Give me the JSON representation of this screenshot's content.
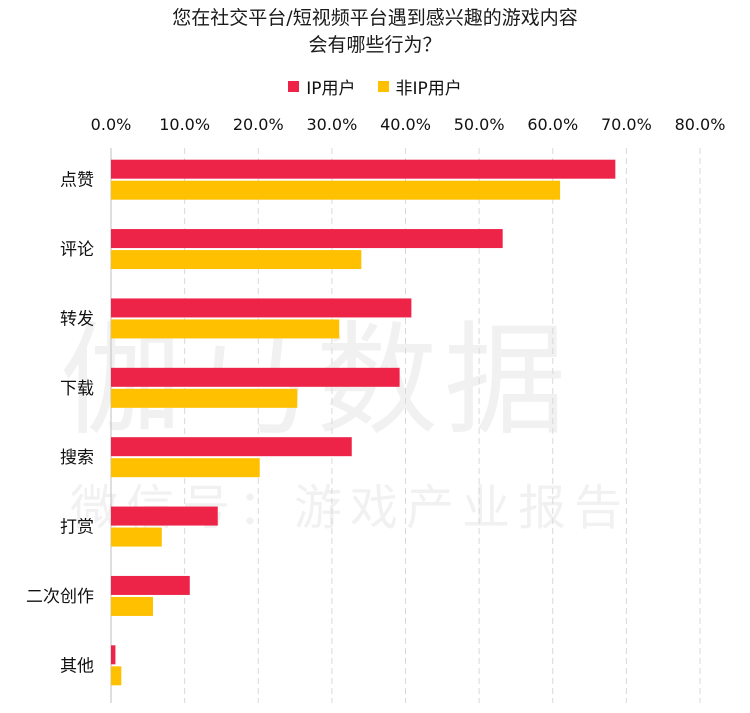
{
  "chart_data": {
    "type": "bar",
    "orientation": "horizontal",
    "title_lines": [
      "您在社交平台/短视频平台遇到感兴趣的游戏内容",
      "会有哪些行为？"
    ],
    "categories": [
      "点赞",
      "评论",
      "转发",
      "下载",
      "搜索",
      "打赏",
      "二次创作",
      "其他"
    ],
    "series": [
      {
        "name": "IP用户",
        "color": "#ED2448",
        "values": [
          68.5,
          53.2,
          40.8,
          39.2,
          32.7,
          14.5,
          10.7,
          0.6
        ]
      },
      {
        "name": "非IP用户",
        "color": "#FFC000",
        "values": [
          61.0,
          34.0,
          31.0,
          25.3,
          20.2,
          6.9,
          5.7,
          1.4
        ]
      }
    ],
    "xticks": [
      "0.0%",
      "10.0%",
      "20.0%",
      "30.0%",
      "40.0%",
      "50.0%",
      "60.0%",
      "70.0%",
      "80.0%"
    ],
    "xlim": [
      0,
      80
    ],
    "grid": "vertical-dashed",
    "legend_position": "top"
  },
  "watermark": {
    "line1": "伽马数据",
    "line2": "微信号：游戏产业报告"
  }
}
